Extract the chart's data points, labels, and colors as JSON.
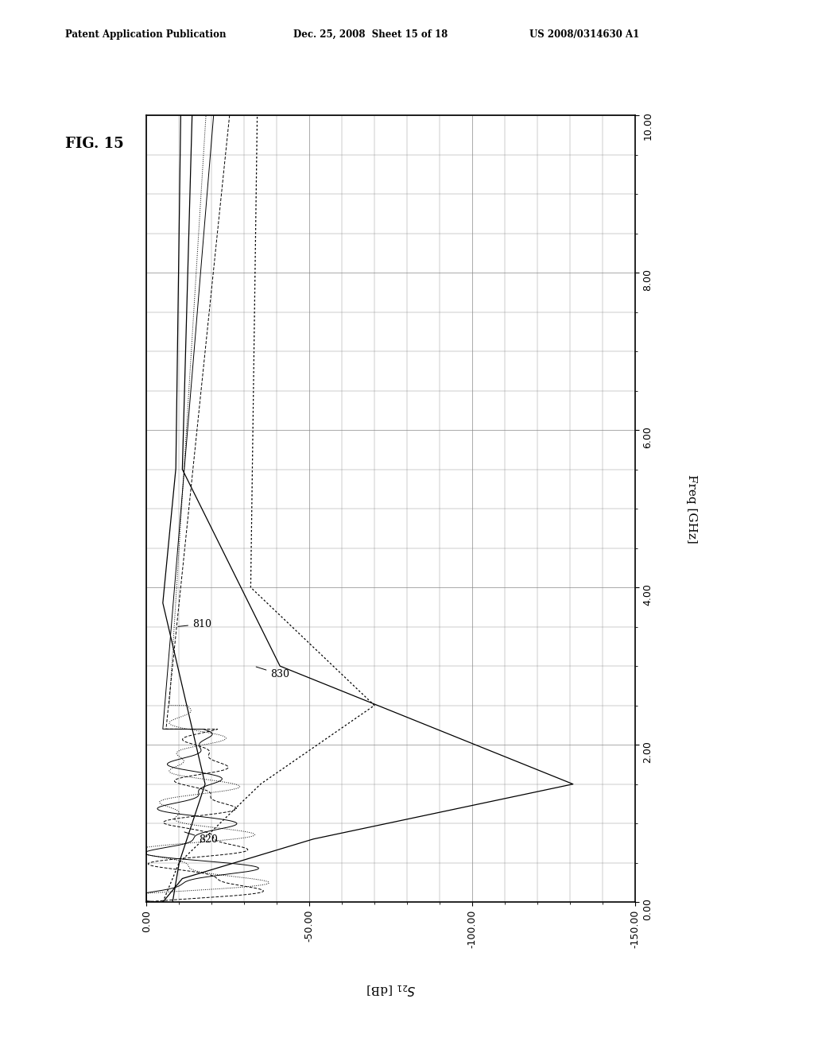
{
  "title": "FIG. 15",
  "header_left": "Patent Application Publication",
  "header_mid": "Dec. 25, 2008  Sheet 15 of 18",
  "header_right": "US 2008/0314630 A1",
  "label_810": "810",
  "label_820": "820",
  "label_830": "830",
  "s21_min": -150.0,
  "s21_max": 0.0,
  "freq_min": 0.0,
  "freq_max": 10.0,
  "s21_ticks": [
    0.0,
    -50.0,
    -100.0,
    -150.0
  ],
  "freq_ticks": [
    0.0,
    2.0,
    4.0,
    6.0,
    8.0,
    10.0
  ],
  "bg_color": "#ffffff",
  "grid_color": "#888888"
}
